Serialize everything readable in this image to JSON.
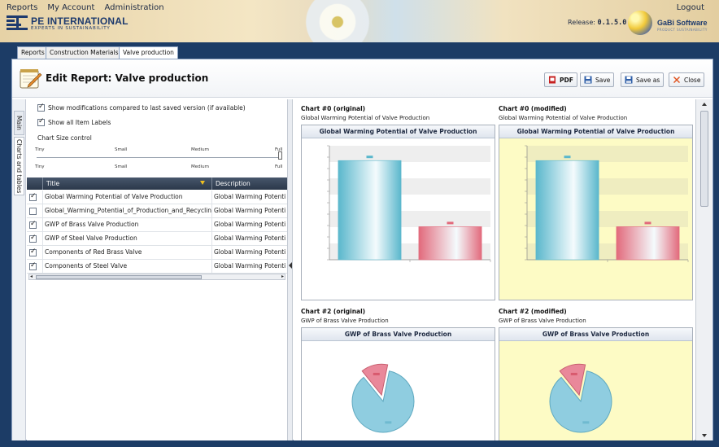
{
  "topnav": {
    "items": [
      "Reports",
      "My Account",
      "Administration"
    ],
    "logout": "Logout"
  },
  "brand": {
    "title": "PE INTERNATIONAL",
    "subtitle": "EXPERTS IN SUSTAINABILITY",
    "release_label": "Release:",
    "release_version": "0.1.5.0",
    "gabi_title": "GaBi Software",
    "gabi_subtitle": "PRODUCT SUSTAINABILITY"
  },
  "tabs": [
    "Reports",
    "Construction Materials",
    "Valve production"
  ],
  "window": {
    "title": "Edit Report: Valve production",
    "buttons": {
      "pdf": "PDF",
      "save": "Save",
      "save_as": "Save as",
      "close": "Close"
    }
  },
  "sidetabs": {
    "main": "Main",
    "charts": "Charts and tables"
  },
  "options": {
    "show_modifications": "Show modifications compared to last saved version (if available)",
    "show_labels": "Show all Item Labels",
    "size_control": "Chart Size control",
    "size_labels": [
      "Tiny",
      "Small",
      "Medium",
      "Full"
    ]
  },
  "grid": {
    "columns": [
      "Title",
      "Description"
    ],
    "rows": [
      {
        "checked": true,
        "title": "Global Warming Potential of Valve Production",
        "description": "Global Warming Potenti"
      },
      {
        "checked": false,
        "title": "Global_Warming_Potential_of_Production_and_Recyclin",
        "description": "Global Warming Potenti"
      },
      {
        "checked": true,
        "title": "GWP of Brass Valve Production",
        "description": "Global Warming Potenti"
      },
      {
        "checked": true,
        "title": "GWP of Steel Valve Production",
        "description": "Global Warming Potenti"
      },
      {
        "checked": true,
        "title": "Components of Red Brass Valve",
        "description": "Global Warming Potenti"
      },
      {
        "checked": true,
        "title": "Components of Steel Valve",
        "description": "Global Warming Potenti"
      }
    ]
  },
  "charts": [
    {
      "heading": "Chart #0 (original)",
      "subtitle": "Global Warming Potential of Valve Production",
      "bar_title": "Global Warming Potential of Valve Production"
    },
    {
      "heading": "Chart #0 (modified)",
      "subtitle": "Global Warming Potential of Valve Production",
      "bar_title": "Global Warming Potential of Valve Production"
    },
    {
      "heading": "Chart #2 (original)",
      "subtitle": "GWP of Brass Valve Production",
      "bar_title": "GWP of Brass Valve Production"
    },
    {
      "heading": "Chart #2 (modified)",
      "subtitle": "GWP of Brass Valve Production",
      "bar_title": "GWP of Brass Valve Production"
    }
  ],
  "chart_data": [
    {
      "type": "bar",
      "categories": [
        "",
        ""
      ],
      "values": [
        0.87,
        0.29
      ],
      "ylim": [
        0,
        1
      ],
      "colors": [
        "#5ab7cc",
        "#e26a7c"
      ]
    },
    {
      "type": "bar",
      "categories": [
        "",
        ""
      ],
      "values": [
        0.87,
        0.29
      ],
      "ylim": [
        0,
        1
      ],
      "colors": [
        "#5ab7cc",
        "#e26a7c"
      ]
    },
    {
      "type": "pie",
      "values": [
        0.86,
        0.14
      ],
      "colors": [
        "#8fcde0",
        "#e9889a"
      ]
    },
    {
      "type": "pie",
      "values": [
        0.86,
        0.14
      ],
      "colors": [
        "#8fcde0",
        "#e9889a"
      ]
    }
  ],
  "colors": {
    "header_bg": "#1c3c66",
    "grid_head": "#2b384a",
    "modified_bg": "#fdfbc5"
  }
}
